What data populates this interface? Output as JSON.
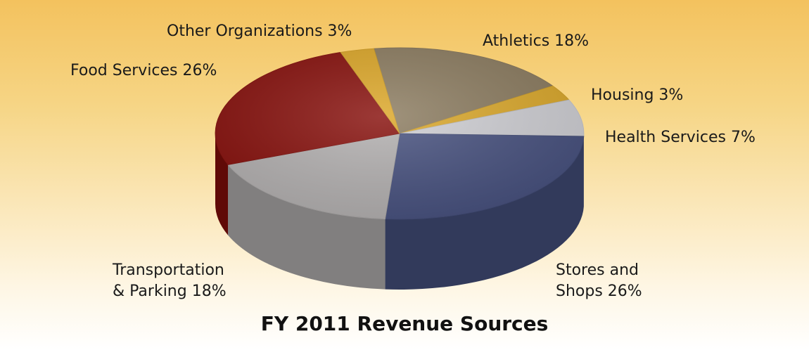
{
  "chart_data": {
    "type": "pie",
    "title": "FY 2011 Revenue Sources",
    "slices": [
      {
        "label": "Athletics 18%",
        "value": 18,
        "color": "#8b7b5f"
      },
      {
        "label": "Housing 3%",
        "value": 3,
        "color": "#dba82a"
      },
      {
        "label": "Health Services 7%",
        "value": 7,
        "color": "#cfcfd4"
      },
      {
        "label": "Stores and\nShops 26%",
        "value": 26,
        "color": "#46507e"
      },
      {
        "label": "Transportation\n& Parking 18%",
        "value": 18,
        "color": "#b3b0b0"
      },
      {
        "label": "Food Services 26%",
        "value": 26,
        "color": "#860e0a"
      },
      {
        "label": "Other Organizations 3%",
        "value": 3,
        "color": "#dca626"
      }
    ]
  }
}
